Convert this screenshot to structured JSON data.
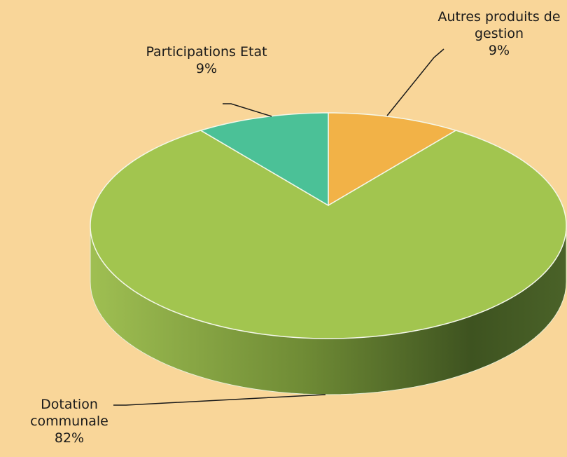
{
  "chart_data": {
    "type": "pie3d",
    "categories": [
      "Autres produits de gestion",
      "Dotation communale",
      "Participations Etat"
    ],
    "values": [
      9,
      82,
      9
    ],
    "value_labels": [
      "9%",
      "82%",
      "9%"
    ],
    "colors": [
      "#f2b247",
      "#a2c54f",
      "#4bc197"
    ]
  }
}
